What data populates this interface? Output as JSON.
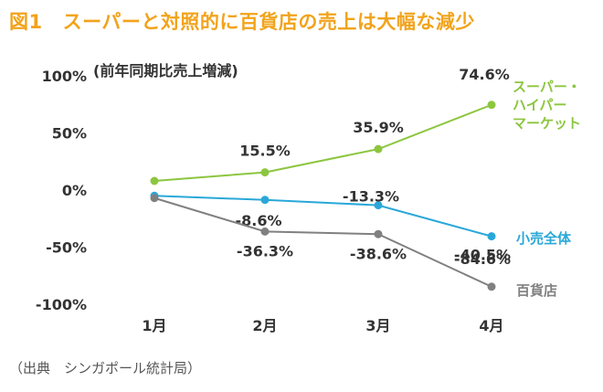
{
  "header": {
    "figure_label": "図1",
    "title": "スーパーと対照的に百貨店の売上は大幅な減少"
  },
  "source_note": "（出典　シンガポール統計局）",
  "colors": {
    "title": "#f2a31b",
    "super_hyper": "#8cc63f",
    "retail_total": "#29a8d8",
    "department_store": "#808080"
  },
  "chart_data": {
    "type": "line",
    "title": "スーパーと対照的に百貨店の売上は大幅な減少",
    "ylabel": "(前年同期比売上増減)",
    "xlabel": "",
    "categories": [
      "1月",
      "2月",
      "3月",
      "4月"
    ],
    "yticks": [
      "100%",
      "50%",
      "0%",
      "-50%",
      "-100%"
    ],
    "ylim": [
      -100,
      100
    ],
    "grid": false,
    "series": [
      {
        "name": "スーパー・ハイパーマーケット",
        "name_lines": [
          "スーパー・",
          "ハイパー",
          "マーケット"
        ],
        "color": "#8cc63f",
        "values": [
          8,
          15.5,
          35.9,
          74.6
        ],
        "labels": [
          "",
          "15.5%",
          "35.9%",
          "74.6%"
        ]
      },
      {
        "name": "小売全体",
        "name_lines": [
          "小売全体"
        ],
        "color": "#29a8d8",
        "values": [
          -5,
          -8.6,
          -13.3,
          -40.5
        ],
        "labels": [
          "",
          "-8.6%",
          "-13.3%",
          "-40.5%"
        ]
      },
      {
        "name": "百貨店",
        "name_lines": [
          "百貨店"
        ],
        "color": "#808080",
        "values": [
          -7,
          -36.3,
          -38.6,
          -84.6
        ],
        "labels": [
          "",
          "-36.3%",
          "-38.6%",
          "-84.6%"
        ]
      }
    ]
  }
}
